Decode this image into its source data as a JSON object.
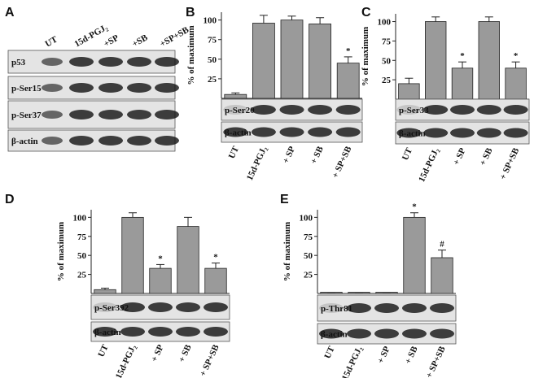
{
  "panel_a": {
    "panel": "A",
    "lanes": [
      "UT",
      "15d-PGJ₂",
      "+SP",
      "+SB",
      "+SP+SB"
    ],
    "blots": [
      "p53",
      "p-Ser15",
      "p-Ser37",
      "β-actin"
    ]
  },
  "chart_data": [
    {
      "type": "bar",
      "panel": "B",
      "ylabel": "% of maximum",
      "categories": [
        "UT",
        "15d-PGJ₂",
        "+ SP",
        "+ SB",
        "+ SP+SB"
      ],
      "series": [
        {
          "color": "#9a9a9a",
          "values": [
            5,
            96,
            100,
            95,
            45
          ],
          "errors": [
            2,
            10,
            5,
            8,
            8
          ]
        }
      ],
      "ylim": [
        0,
        110
      ],
      "yticks": [
        25,
        50,
        75,
        100
      ],
      "annotations": [
        {
          "category": "+ SP+SB",
          "text": "*"
        }
      ],
      "blots": [
        "p-Ser20",
        "β-actin"
      ]
    },
    {
      "type": "bar",
      "panel": "C",
      "ylabel": "% of maximum",
      "categories": [
        "UT",
        "15d-PGJ₂",
        "+ SP",
        "+ SB",
        "+ SP+SB"
      ],
      "series": [
        {
          "color": "#9a9a9a",
          "values": [
            20,
            100,
            40,
            100,
            40
          ],
          "errors": [
            7,
            6,
            8,
            6,
            8
          ]
        }
      ],
      "ylim": [
        0,
        110
      ],
      "yticks": [
        25,
        50,
        75,
        100
      ],
      "annotations": [
        {
          "category": "+ SP",
          "text": "*"
        },
        {
          "category": "+ SP+SB",
          "text": "*"
        }
      ],
      "blots": [
        "p-Ser33",
        "β-actin"
      ]
    },
    {
      "type": "bar",
      "panel": "D",
      "ylabel": "% of maximum",
      "categories": [
        "UT",
        "15d-PGJ₂",
        "+ SP",
        "+ SB",
        "+ SP+SB"
      ],
      "series": [
        {
          "color": "#9a9a9a",
          "values": [
            5,
            100,
            33,
            88,
            33
          ],
          "errors": [
            2,
            6,
            5,
            12,
            7
          ]
        }
      ],
      "ylim": [
        0,
        110
      ],
      "yticks": [
        25,
        50,
        75,
        100
      ],
      "annotations": [
        {
          "category": "+ SP",
          "text": "*"
        },
        {
          "category": "+ SP+SB",
          "text": "*"
        }
      ],
      "blots": [
        "p-Ser392",
        "β-actin"
      ]
    },
    {
      "type": "bar",
      "panel": "E",
      "ylabel": "% of maximum",
      "categories": [
        "UT",
        "15d-PGJ₂",
        "+ SP",
        "+ SB",
        "+ SP+SB"
      ],
      "series": [
        {
          "color": "#9a9a9a",
          "values": [
            0,
            0,
            0,
            100,
            47
          ],
          "errors": [
            0,
            0,
            0,
            6,
            10
          ]
        }
      ],
      "ylim": [
        0,
        110
      ],
      "yticks": [
        25,
        50,
        75,
        100
      ],
      "annotations": [
        {
          "category": "+ SB",
          "text": "*"
        },
        {
          "category": "+ SP+SB",
          "text": "#"
        }
      ],
      "blots": [
        "p-Thr81",
        "β-actin"
      ]
    }
  ]
}
